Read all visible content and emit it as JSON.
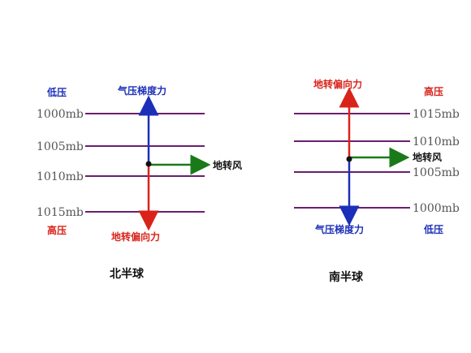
{
  "colors": {
    "isobar": "#6a1f6e",
    "high": "#d9231a",
    "low": "#1c2fb8",
    "wind": "#1a7a1a",
    "point": "#111111"
  },
  "northern": {
    "low_pressure": "低压",
    "high_pressure": "高压",
    "pgf": "气压梯度力",
    "coriolis": "地转偏向力",
    "wind": "地转风",
    "isobars": [
      "1000mb",
      "1005mb",
      "1010mb",
      "1015mb"
    ],
    "title": "北半球"
  },
  "southern": {
    "low_pressure": "低压",
    "high_pressure": "高压",
    "pgf": "气压梯度力",
    "coriolis": "地转偏向力",
    "wind": "地转风",
    "isobars": [
      "1015mb",
      "1010mb",
      "1005mb",
      "1000mb"
    ],
    "title": "南半球"
  }
}
